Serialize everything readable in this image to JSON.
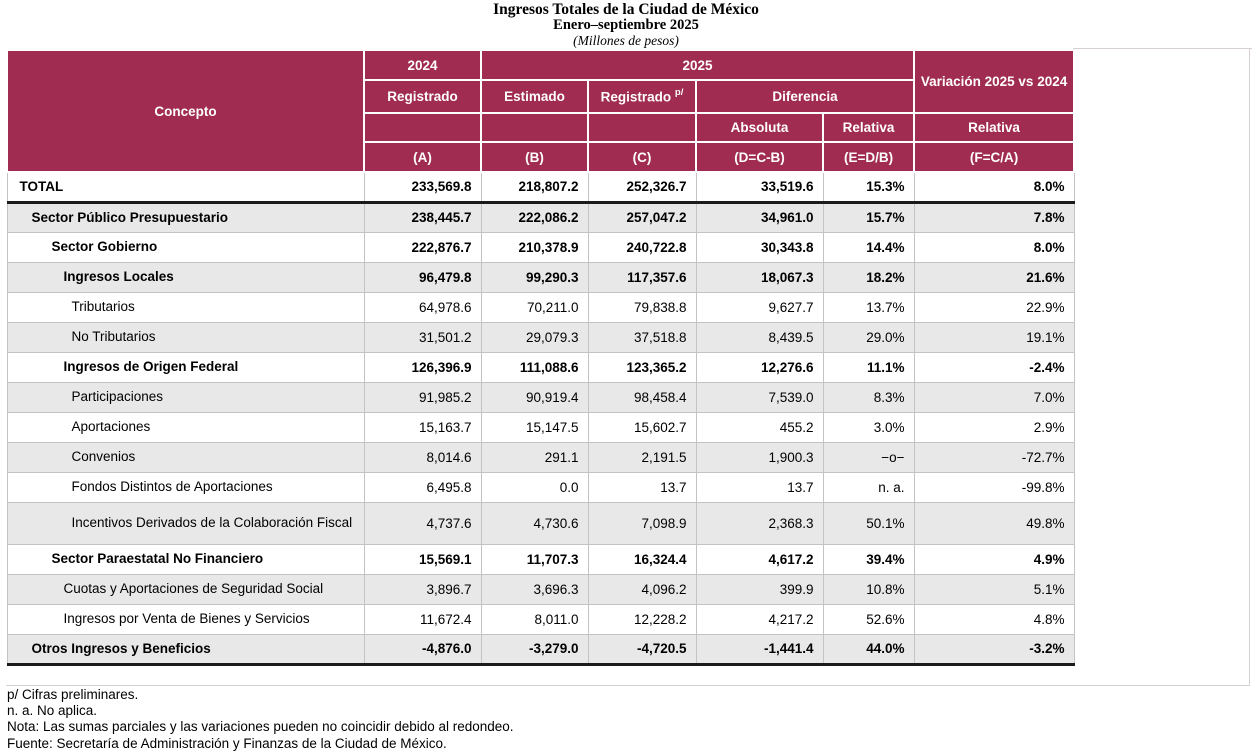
{
  "title": {
    "line1": "Ingresos Totales de la Ciudad de México",
    "line2": "Enero–septiembre 2025",
    "line3": "(Millones de pesos)"
  },
  "colors": {
    "header_bg": "#A12C51",
    "stripe": "#E8E8E8",
    "thick_rule": "#1b1b1b"
  },
  "header": {
    "concepto": "Concepto",
    "y2024": "2024",
    "y2025": "2025",
    "variacion": "Variación 2025 vs 2024",
    "registrado": "Registrado",
    "estimado": "Estimado",
    "registrado_p": "Registrado",
    "registrado_p_sup": "p/",
    "diferencia": "Diferencia",
    "absoluta": "Absoluta",
    "relativa_e": "Relativa",
    "relativa_f": "Relativa",
    "col_a": "(A)",
    "col_b": "(B)",
    "col_c": "(C)",
    "col_d": "(D=C-B)",
    "col_e": "(E=D/B)",
    "col_f": "(F=C/A)"
  },
  "rows": [
    {
      "concepto": "TOTAL",
      "a": "233,569.8",
      "b": "218,807.2",
      "c": "252,326.7",
      "d": "33,519.6",
      "e": "15.3%",
      "f": "8.0%",
      "bold": true,
      "indent": 0,
      "shaded": false,
      "total": true
    },
    {
      "concepto": "Sector Público Presupuestario",
      "a": "238,445.7",
      "b": "222,086.2",
      "c": "257,047.2",
      "d": "34,961.0",
      "e": "15.7%",
      "f": "7.8%",
      "bold": true,
      "indent": 1,
      "shaded": true
    },
    {
      "concepto": "Sector Gobierno",
      "a": "222,876.7",
      "b": "210,378.9",
      "c": "240,722.8",
      "d": "30,343.8",
      "e": "14.4%",
      "f": "8.0%",
      "bold": true,
      "indent": 2,
      "shaded": false
    },
    {
      "concepto": "Ingresos Locales",
      "a": "96,479.8",
      "b": "99,290.3",
      "c": "117,357.6",
      "d": "18,067.3",
      "e": "18.2%",
      "f": "21.6%",
      "bold": true,
      "indent": 3,
      "shaded": true
    },
    {
      "concepto": "Tributarios",
      "a": "64,978.6",
      "b": "70,211.0",
      "c": "79,838.8",
      "d": "9,627.7",
      "e": "13.7%",
      "f": "22.9%",
      "bold": false,
      "indent": 4,
      "shaded": false
    },
    {
      "concepto": "No Tributarios",
      "a": "31,501.2",
      "b": "29,079.3",
      "c": "37,518.8",
      "d": "8,439.5",
      "e": "29.0%",
      "f": "19.1%",
      "bold": false,
      "indent": 4,
      "shaded": true
    },
    {
      "concepto": "Ingresos de Origen Federal",
      "a": "126,396.9",
      "b": "111,088.6",
      "c": "123,365.2",
      "d": "12,276.6",
      "e": "11.1%",
      "f": "-2.4%",
      "bold": true,
      "indent": 3,
      "shaded": false
    },
    {
      "concepto": "Participaciones",
      "a": "91,985.2",
      "b": "90,919.4",
      "c": "98,458.4",
      "d": "7,539.0",
      "e": "8.3%",
      "f": "7.0%",
      "bold": false,
      "indent": 4,
      "shaded": true
    },
    {
      "concepto": "Aportaciones",
      "a": "15,163.7",
      "b": "15,147.5",
      "c": "15,602.7",
      "d": "455.2",
      "e": "3.0%",
      "f": "2.9%",
      "bold": false,
      "indent": 4,
      "shaded": false
    },
    {
      "concepto": "Convenios",
      "a": "8,014.6",
      "b": "291.1",
      "c": "2,191.5",
      "d": "1,900.3",
      "e": "−o−",
      "f": "-72.7%",
      "bold": false,
      "indent": 4,
      "shaded": true
    },
    {
      "concepto": "Fondos Distintos de Aportaciones",
      "a": "6,495.8",
      "b": "0.0",
      "c": "13.7",
      "d": "13.7",
      "e": "n. a.",
      "f": "-99.8%",
      "bold": false,
      "indent": 4,
      "shaded": false
    },
    {
      "concepto": "Incentivos Derivados de la Colaboración Fiscal",
      "a": "4,737.6",
      "b": "4,730.6",
      "c": "7,098.9",
      "d": "2,368.3",
      "e": "50.1%",
      "f": "49.8%",
      "bold": false,
      "indent": 4,
      "shaded": true,
      "hang": true
    },
    {
      "concepto": "Sector Paraestatal No Financiero",
      "a": "15,569.1",
      "b": "11,707.3",
      "c": "16,324.4",
      "d": "4,617.2",
      "e": "39.4%",
      "f": "4.9%",
      "bold": true,
      "indent": 2,
      "shaded": false
    },
    {
      "concepto": "Cuotas y Aportaciones de Seguridad Social",
      "a": "3,896.7",
      "b": "3,696.3",
      "c": "4,096.2",
      "d": "399.9",
      "e": "10.8%",
      "f": "5.1%",
      "bold": false,
      "indent": 3,
      "shaded": true
    },
    {
      "concepto": "Ingresos por Venta de Bienes y Servicios",
      "a": "11,672.4",
      "b": "8,011.0",
      "c": "12,228.2",
      "d": "4,217.2",
      "e": "52.6%",
      "f": "4.8%",
      "bold": false,
      "indent": 3,
      "shaded": false
    },
    {
      "concepto": "Otros Ingresos y Beneficios",
      "a": "-4,876.0",
      "b": "-3,279.0",
      "c": "-4,720.5",
      "d": "-1,441.4",
      "e": "44.0%",
      "f": "-3.2%",
      "bold": true,
      "indent": 1,
      "shaded": true,
      "last": true
    }
  ],
  "notes": [
    "p/ Cifras preliminares.",
    "n. a. No aplica.",
    "Nota: Las sumas parciales y las variaciones pueden no coincidir debido al redondeo.",
    "Fuente: Secretaría de Administración y Finanzas de la Ciudad de México."
  ]
}
